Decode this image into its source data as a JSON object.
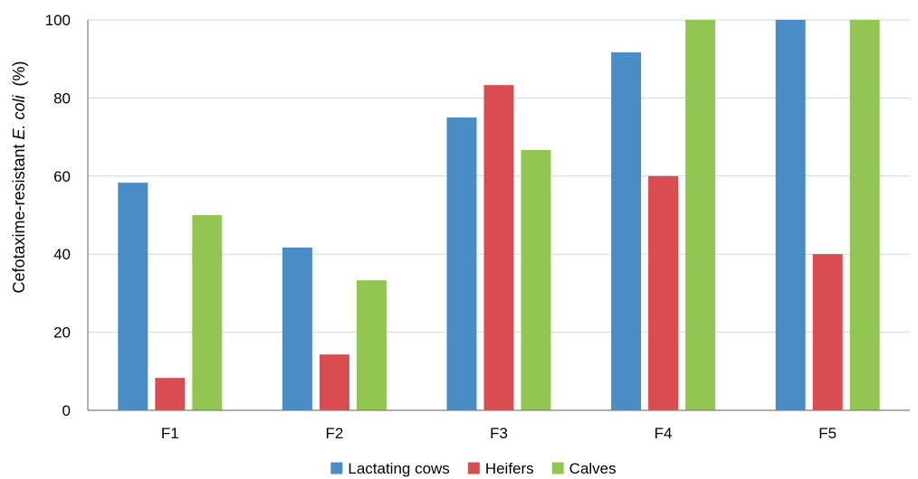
{
  "chart_data": {
    "type": "bar",
    "categories": [
      "F1",
      "F2",
      "F3",
      "F4",
      "F5"
    ],
    "series": [
      {
        "name": "Lactating cows",
        "color": "#4a8dc6",
        "values": [
          58.3,
          41.7,
          75.0,
          91.7,
          100
        ]
      },
      {
        "name": "Heifers",
        "color": "#d94d50",
        "values": [
          8.3,
          14.3,
          83.3,
          60.0,
          40.0
        ]
      },
      {
        "name": "Calves",
        "color": "#92c552",
        "values": [
          50.0,
          33.3,
          66.7,
          100,
          100
        ]
      }
    ],
    "ylabel_prefix": "Cefotaxime-resistant ",
    "ylabel_italic": "E. coli",
    "ylabel_suffix": "  (%)",
    "xlabel": "",
    "ylim": [
      0,
      100
    ],
    "yticks": [
      0,
      20,
      40,
      60,
      80,
      100
    ],
    "grid": true,
    "gridColor": "#c6d9e6",
    "legend_position": "bottom"
  }
}
